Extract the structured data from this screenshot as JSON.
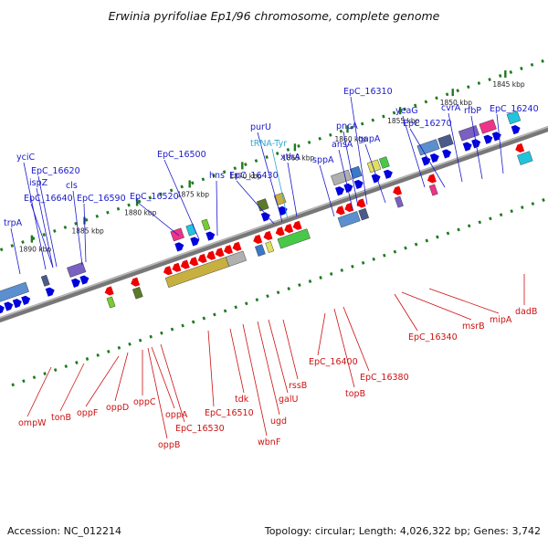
{
  "title": "Erwinia pyrifoliae Ep1/96 chromosome, complete genome",
  "footer": {
    "accession": "Accession: NC_012214",
    "summary": "Topology: circular; Length: 4,026,322 bp; Genes: 3,742"
  },
  "colors": {
    "forward_label": "#1a1acc",
    "reverse_label": "#cc1111",
    "rna_label": "#33aacc",
    "backbone": "#777777",
    "tick": "#1e7a1e",
    "forward_arrow": "#0000dd",
    "reverse_arrow": "#ee0000"
  },
  "kbp_ticks": [
    "1890 kbp",
    "1885 kbp",
    "1880 kbp",
    "1875 kbp",
    "1870 kbp",
    "1865 kbp",
    "1860 kbp",
    "1855 kbp",
    "1850 kbp",
    "1845 kbp"
  ],
  "forward_genes": [
    "trpA",
    "yciC",
    "EpC_16620",
    "ispZ",
    "EpC_16640",
    "cls",
    "EpC_16590",
    "EpC_16520",
    "EpC_16500",
    "hns",
    "EpC_16430",
    "purU",
    "xthA",
    "sppA",
    "ansA",
    "pncA",
    "EpC_16310",
    "gapA",
    "yeaG",
    "EpC_16270",
    "cvrA",
    "rfbP",
    "EpC_16240"
  ],
  "rna_genes": [
    "tRNA-Tyr"
  ],
  "reverse_genes": [
    "ompW",
    "tonB",
    "oppF",
    "oppD",
    "oppC",
    "oppA",
    "oppB",
    "EpC_16530",
    "EpC_16510",
    "tdk",
    "wbnF",
    "ugd",
    "galU",
    "rssB",
    "EpC_16400",
    "topB",
    "EpC_16380",
    "EpC_16340",
    "msrB",
    "mipA",
    "dadB"
  ]
}
